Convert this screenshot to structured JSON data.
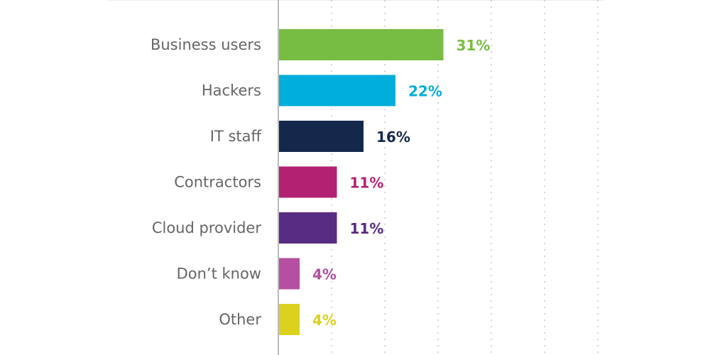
{
  "chart_data": {
    "type": "bar",
    "orientation": "horizontal",
    "categories": [
      "Business users",
      "Hackers",
      "IT staff",
      "Contractors",
      "Cloud provider",
      "Don’t know",
      "Other"
    ],
    "values": [
      31,
      22,
      16,
      11,
      11,
      4,
      4
    ],
    "value_labels": [
      "31%",
      "22%",
      "16%",
      "11%",
      "11%",
      "4%",
      "4%"
    ],
    "colors": [
      "#77bc43",
      "#00aedb",
      "#14284c",
      "#b32272",
      "#582c83",
      "#b44fa2",
      "#dcd21e"
    ],
    "xlim": [
      0,
      60
    ],
    "grid": true,
    "title": "",
    "xlabel": "",
    "ylabel": ""
  }
}
